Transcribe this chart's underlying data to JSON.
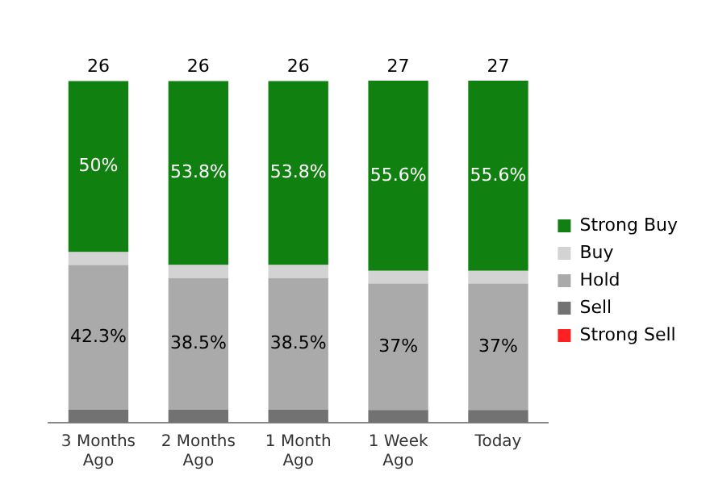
{
  "chart_data": {
    "type": "bar",
    "stacked": true,
    "categories": [
      "3 Months Ago",
      "2 Months Ago",
      "1 Month Ago",
      "1 Week Ago",
      "Today"
    ],
    "series": [
      {
        "name": "Strong Sell",
        "color": "#ff2020",
        "values": [
          0,
          0,
          0,
          0,
          0
        ]
      },
      {
        "name": "Sell",
        "color": "#727272",
        "values": [
          3.8,
          3.8,
          3.8,
          3.7,
          3.7
        ]
      },
      {
        "name": "Hold",
        "color": "#aaaaaa",
        "values": [
          42.3,
          38.5,
          38.5,
          37,
          37
        ],
        "value_labels": [
          "42.3%",
          "38.5%",
          "38.5%",
          "37%",
          "37%"
        ]
      },
      {
        "name": "Buy",
        "color": "#d3d3d3",
        "values": [
          3.8,
          3.8,
          3.8,
          3.7,
          3.7
        ]
      },
      {
        "name": "Strong Buy",
        "color": "#108010",
        "values": [
          50,
          53.8,
          53.8,
          55.6,
          55.6
        ],
        "value_labels": [
          "50%",
          "53.8%",
          "53.8%",
          "55.6%",
          "55.6%"
        ]
      }
    ],
    "annotations": [
      "26",
      "26",
      "26",
      "27",
      "27"
    ],
    "legend": "right",
    "grid": false
  }
}
